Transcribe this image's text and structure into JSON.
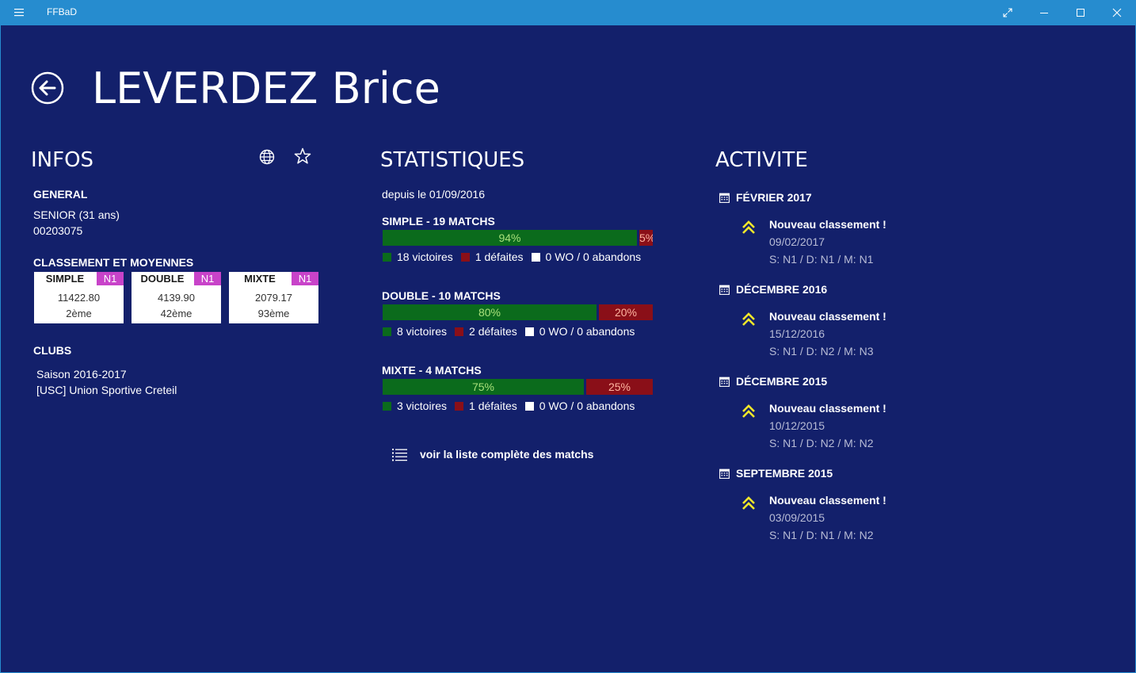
{
  "window": {
    "title": "FFBaD"
  },
  "player": {
    "name": "LEVERDEZ Brice"
  },
  "infos": {
    "heading": "INFOS",
    "general_label": "GENERAL",
    "category": "SENIOR (31 ans)",
    "license": "00203075",
    "ranking_label": "CLASSEMENT ET MOYENNES",
    "rankings": [
      {
        "label": "SIMPLE",
        "badge": "N1",
        "value": "11422.80",
        "rank": "2ème"
      },
      {
        "label": "DOUBLE",
        "badge": "N1",
        "value": "4139.90",
        "rank": "42ème"
      },
      {
        "label": "MIXTE",
        "badge": "N1",
        "value": "2079.17",
        "rank": "93ème"
      }
    ],
    "clubs_label": "CLUBS",
    "season": "Saison 2016-2017",
    "club": "[USC] Union Sportive Creteil"
  },
  "stats": {
    "heading": "STATISTIQUES",
    "since": "depuis le 01/09/2016",
    "groups": [
      {
        "title": "SIMPLE - 19 MATCHS",
        "win_pct": 94,
        "loss_pct": 5,
        "win_label": "94%",
        "loss_label": "5%",
        "victories": "18 victoires",
        "defeats": "1 défaites",
        "wo": "0 WO / 0 abandons"
      },
      {
        "title": "DOUBLE - 10 MATCHS",
        "win_pct": 80,
        "loss_pct": 20,
        "win_label": "80%",
        "loss_label": "20%",
        "victories": "8 victoires",
        "defeats": "2 défaites",
        "wo": "0 WO / 0 abandons"
      },
      {
        "title": "MIXTE - 4 MATCHS",
        "win_pct": 75,
        "loss_pct": 25,
        "win_label": "75%",
        "loss_label": "25%",
        "victories": "3 victoires",
        "defeats": "1 défaites",
        "wo": "0 WO / 0 abandons"
      }
    ],
    "link_label": "voir la liste complète des matchs"
  },
  "activity": {
    "heading": "ACTIVITE",
    "entries": [
      {
        "month": "FÉVRIER 2017",
        "title": "Nouveau classement !",
        "date": "09/02/2017",
        "detail": "S: N1 / D: N1 / M: N1"
      },
      {
        "month": "DÉCEMBRE 2016",
        "title": "Nouveau classement !",
        "date": "15/12/2016",
        "detail": "S: N1 / D: N2 / M: N3"
      },
      {
        "month": "DÉCEMBRE 2015",
        "title": "Nouveau classement !",
        "date": "10/12/2015",
        "detail": "S: N1 / D: N2 / M: N2"
      },
      {
        "month": "SEPTEMBRE 2015",
        "title": "Nouveau classement !",
        "date": "03/09/2015",
        "detail": "S: N1 / D: N1 / M: N2"
      }
    ]
  },
  "colors": {
    "background": "#13206b",
    "titlebar": "#268ccf",
    "win": "#0b6b1c",
    "loss": "#8a0f18",
    "badge": "#c843c9",
    "chevron": "#f2e72a"
  },
  "icons": {
    "menu": "hamburger-icon",
    "fullscreen": "expand-icon",
    "minimize": "minimize-icon",
    "maximize": "maximize-icon",
    "close": "close-icon",
    "back": "back-arrow-icon",
    "web": "globe-icon",
    "favorite": "star-icon",
    "list": "list-icon",
    "calendar": "calendar-icon",
    "rank_up": "double-chevron-up-icon"
  }
}
